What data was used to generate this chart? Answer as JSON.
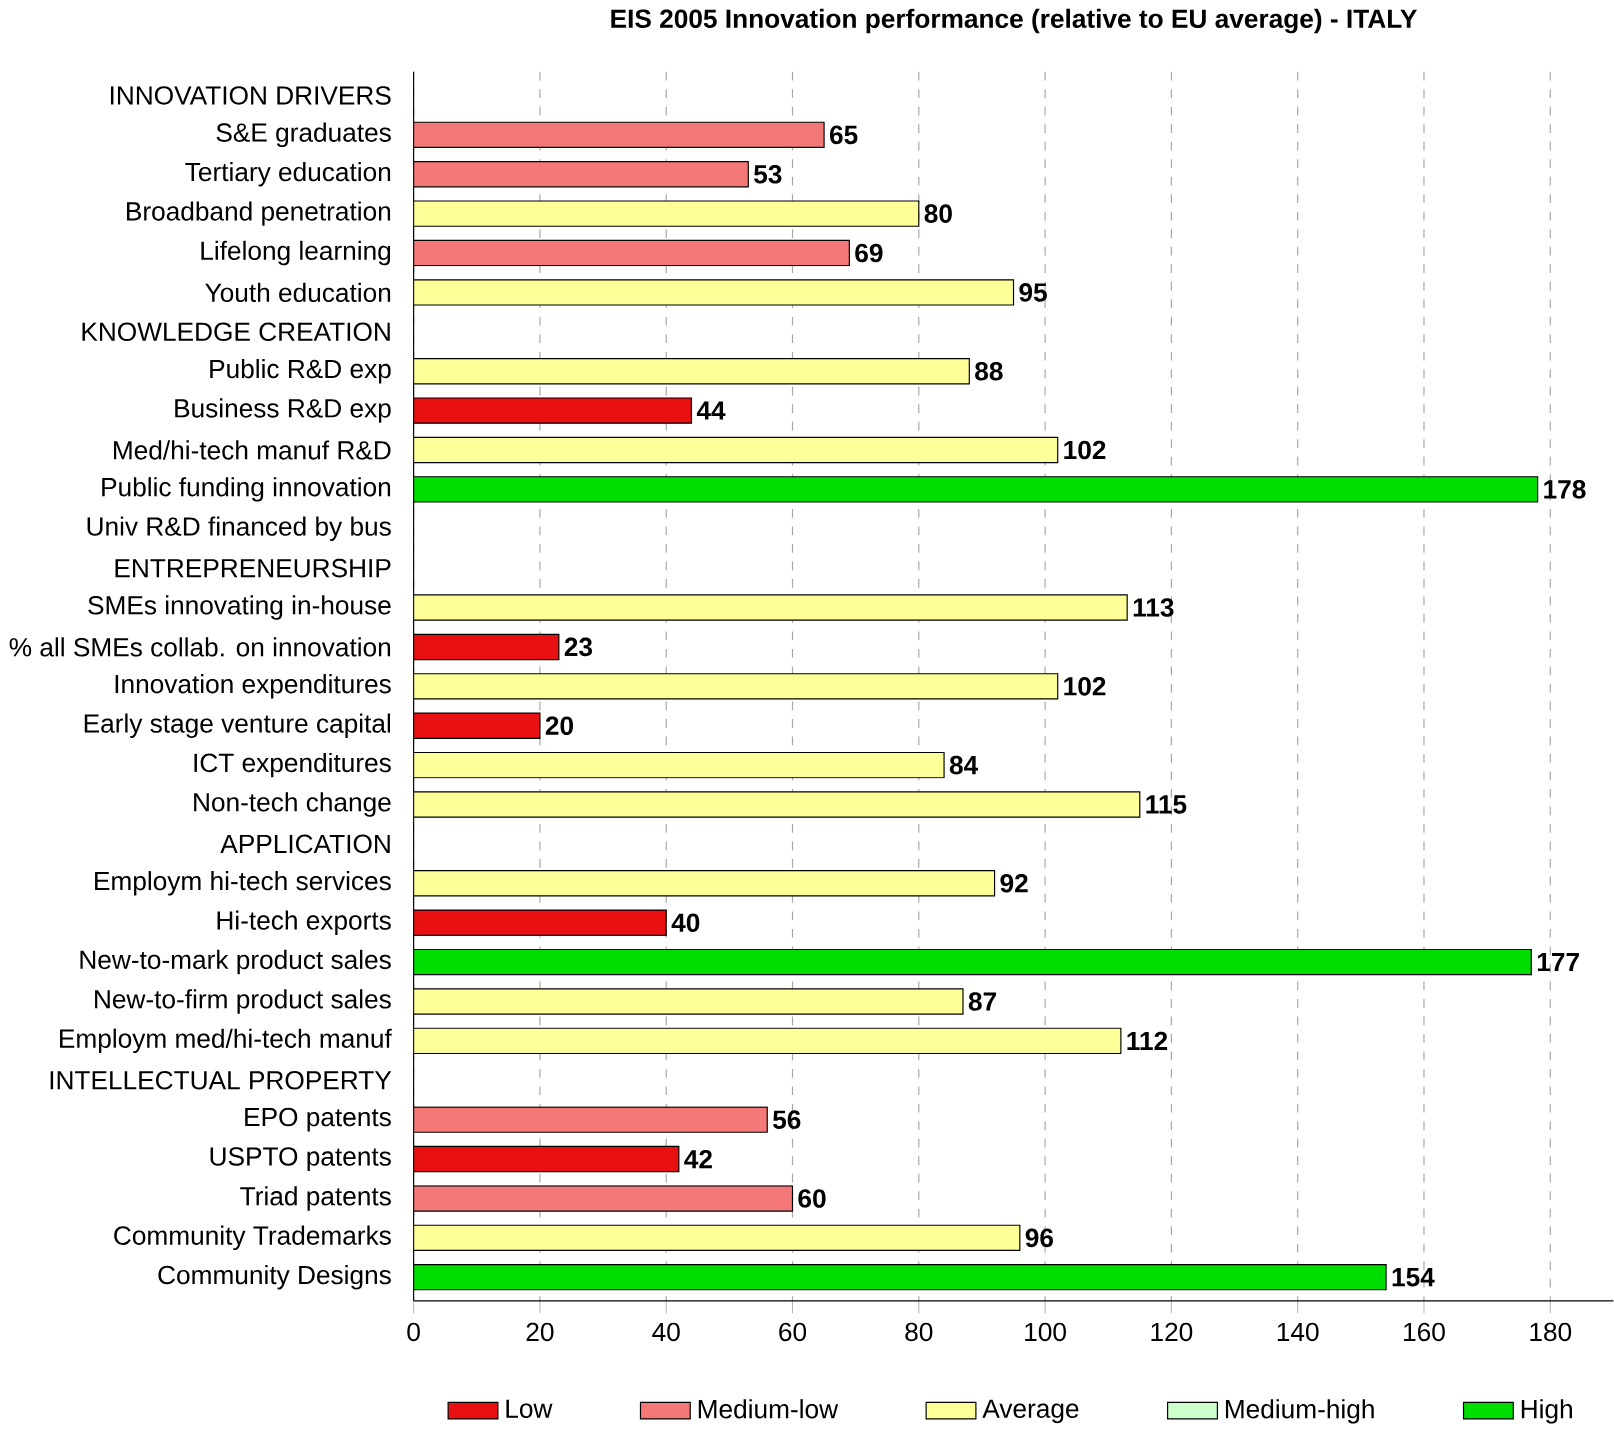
{
  "chart_data": {
    "type": "bar",
    "orientation": "horizontal",
    "title": "EIS 2005 Innovation performance (relative to EU average) - ITALY",
    "categories": [
      "INNOVATION DRIVERS",
      "S&E graduates",
      "Tertiary education",
      "Broadband penetration",
      "Lifelong learning",
      "Youth education",
      "KNOWLEDGE CREATION",
      "Public R&D exp",
      "Business R&D exp",
      "Med/hi-tech manuf R&D",
      "Public funding innovation",
      "Univ R&D financed by bus",
      "ENTREPRENEURSHIP",
      "SMEs innovating in-house",
      "% all SMEs collab. on innovation",
      "Innovation expenditures",
      "Early stage venture capital",
      "ICT expenditures",
      "Non-tech change",
      "APPLICATION",
      "Employm hi-tech services",
      "Hi-tech exports",
      "New-to-mark product sales",
      "New-to-firm product sales",
      "Employm med/hi-tech manuf",
      "INTELLECTUAL PROPERTY",
      "EPO patents",
      "USPTO patents",
      "Triad patents",
      "Community Trademarks",
      "Community Designs"
    ],
    "series": [
      {
        "name": "Low",
        "color": "#e81010",
        "values": [
          null,
          null,
          null,
          null,
          null,
          null,
          null,
          null,
          44,
          null,
          null,
          null,
          null,
          null,
          23,
          null,
          20,
          null,
          null,
          null,
          null,
          40,
          null,
          null,
          null,
          null,
          null,
          42,
          null,
          null,
          null
        ]
      },
      {
        "name": "Medium-low",
        "color": "#f47878",
        "values": [
          null,
          65,
          53,
          null,
          69,
          null,
          null,
          null,
          null,
          null,
          null,
          null,
          null,
          null,
          null,
          null,
          null,
          null,
          null,
          null,
          null,
          null,
          null,
          null,
          null,
          null,
          56,
          null,
          60,
          null,
          null
        ]
      },
      {
        "name": "Average",
        "color": "#ffff99",
        "values": [
          null,
          null,
          null,
          80,
          null,
          95,
          null,
          88,
          null,
          102,
          null,
          null,
          null,
          113,
          null,
          102,
          null,
          84,
          115,
          null,
          92,
          null,
          null,
          87,
          112,
          null,
          null,
          null,
          null,
          96,
          null
        ]
      },
      {
        "name": "Medium-high",
        "color": "#ccffcc",
        "values": [
          null,
          null,
          null,
          null,
          null,
          null,
          null,
          null,
          null,
          null,
          null,
          null,
          null,
          null,
          null,
          null,
          null,
          null,
          null,
          null,
          null,
          null,
          null,
          null,
          null,
          null,
          null,
          null,
          null,
          null,
          null
        ]
      },
      {
        "name": "High",
        "color": "#00dd00",
        "values": [
          null,
          null,
          null,
          null,
          null,
          null,
          null,
          null,
          null,
          null,
          178,
          null,
          null,
          null,
          null,
          null,
          null,
          null,
          null,
          null,
          null,
          null,
          177,
          null,
          null,
          null,
          null,
          null,
          null,
          null,
          154
        ]
      }
    ],
    "xlim": [
      0,
      190
    ],
    "xticks": [
      0,
      20,
      40,
      60,
      80,
      100,
      120,
      140,
      160,
      180
    ],
    "grid": "x",
    "legend": "bottom",
    "data_labels": true
  }
}
